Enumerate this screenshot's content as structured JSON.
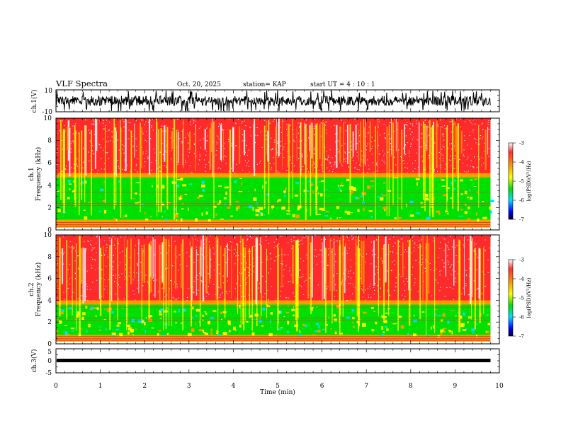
{
  "header": {
    "title": "VLF Spectra",
    "date": "Oct. 20, 2025",
    "station": "station= KAP",
    "start": "start  UT =   4 : 10 : 1"
  },
  "chart_data": {
    "type": "heatmap",
    "title": "VLF Spectra",
    "xlabel": "Time  (min)",
    "xlim": [
      0,
      10
    ],
    "x_ticks": [
      "0",
      "1",
      "2",
      "3",
      "4",
      "5",
      "6",
      "7",
      "8",
      "9",
      "10"
    ],
    "data_end_min": 9.8,
    "panels": [
      {
        "id": "ch1_wave",
        "kind": "waveform",
        "ylabel": "ch.1(V)",
        "ylim": [
          -10,
          10
        ],
        "y_ticks": [
          "10",
          "-10"
        ]
      },
      {
        "id": "ch1_spec",
        "kind": "spectrogram",
        "ylabel1": "ch.1",
        "ylabel2": "Frequency  (kHz)",
        "ylim": [
          0,
          10
        ],
        "y_ticks": [
          "0",
          "2",
          "4",
          "6",
          "8",
          "10"
        ],
        "bands": [
          {
            "from_khz": 0.2,
            "to_khz": 0.9,
            "level": "mixed"
          },
          {
            "from_khz": 0.9,
            "to_khz": 4.7,
            "level": "-5.5"
          },
          {
            "from_khz": 4.7,
            "to_khz": 10,
            "level": "-3.5"
          }
        ]
      },
      {
        "id": "ch2_spec",
        "kind": "spectrogram",
        "ylabel1": "ch.2",
        "ylabel2": "Frequency  (kHz)",
        "ylim": [
          0,
          10
        ],
        "y_ticks": [
          "0",
          "2",
          "4",
          "6",
          "8",
          "10"
        ],
        "bands": [
          {
            "from_khz": 0.2,
            "to_khz": 0.8,
            "level": "mixed"
          },
          {
            "from_khz": 0.8,
            "to_khz": 3.6,
            "level": "-5.5"
          },
          {
            "from_khz": 3.6,
            "to_khz": 10,
            "level": "-3.5"
          }
        ]
      },
      {
        "id": "ch3_wave",
        "kind": "waveform",
        "ylabel": "ch.3(V)",
        "ylim": [
          -5,
          5
        ],
        "y_ticks": [
          "5",
          "0",
          "-5"
        ],
        "level_v": 0
      }
    ],
    "colorbar": {
      "label": "log(PSD)(V²/Hz)",
      "range": [
        -7,
        -3
      ],
      "ticks": [
        "-3",
        "-4",
        "-5",
        "-6",
        "-7"
      ]
    }
  },
  "colors": {
    "high": "#ff2a2a",
    "upper": "#ff9a00",
    "mid": "#ffff00",
    "low": "#00e000",
    "lower": "#00e0ff",
    "bottom": "#0000ff",
    "floor": "#000080"
  }
}
